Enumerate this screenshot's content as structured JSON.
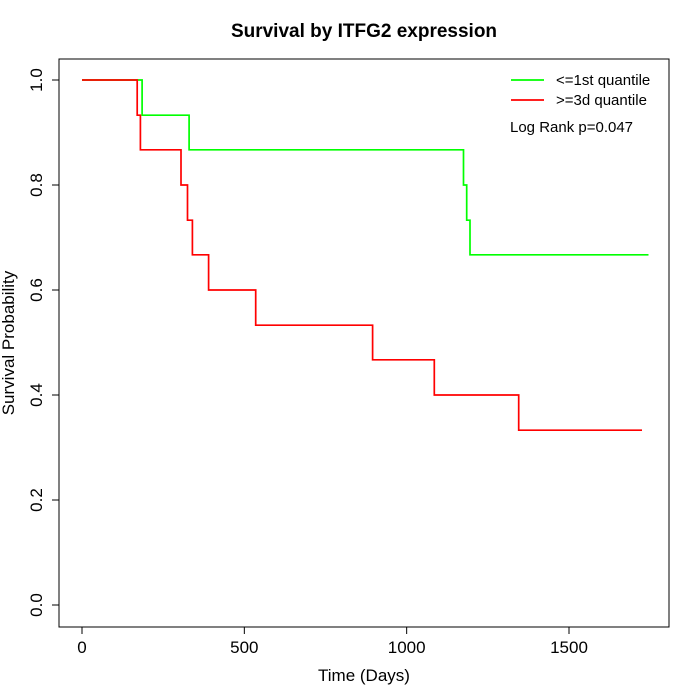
{
  "chart_data": {
    "type": "line",
    "subtype": "kaplan-meier step plot",
    "title": "Survival by ITFG2 expression",
    "xlabel": "Time (Days)",
    "ylabel": "Survival Probability",
    "xlim": [
      0,
      1750
    ],
    "ylim": [
      0,
      1
    ],
    "x_ticks": [
      0,
      500,
      1000,
      1500
    ],
    "y_ticks": [
      0.0,
      0.2,
      0.4,
      0.6,
      0.8,
      1.0
    ],
    "x_tick_labels": [
      "0",
      "500",
      "1000",
      "1500"
    ],
    "y_tick_labels": [
      "0.0",
      "0.2",
      "0.4",
      "0.6",
      "0.8",
      "1.0"
    ],
    "grid": false,
    "legend_position": "top-right",
    "annotation": "Log Rank p=0.047",
    "series": [
      {
        "name": "<=1st quantile",
        "color": "#00ff00",
        "x": [
          0,
          185,
          185,
          330,
          330,
          1175,
          1175,
          1185,
          1185,
          1195,
          1195,
          1745
        ],
        "y": [
          1.0,
          1.0,
          0.933,
          0.933,
          0.867,
          0.867,
          0.8,
          0.8,
          0.733,
          0.733,
          0.667,
          0.667
        ]
      },
      {
        "name": ">=3d quantile",
        "color": "#ff0000",
        "x": [
          0,
          170,
          170,
          180,
          180,
          305,
          305,
          325,
          325,
          340,
          340,
          390,
          390,
          535,
          535,
          895,
          895,
          1085,
          1085,
          1345,
          1345,
          1725
        ],
        "y": [
          1.0,
          1.0,
          0.933,
          0.933,
          0.867,
          0.867,
          0.8,
          0.8,
          0.733,
          0.733,
          0.667,
          0.667,
          0.6,
          0.6,
          0.533,
          0.533,
          0.467,
          0.467,
          0.4,
          0.4,
          0.333,
          0.333
        ]
      }
    ]
  }
}
